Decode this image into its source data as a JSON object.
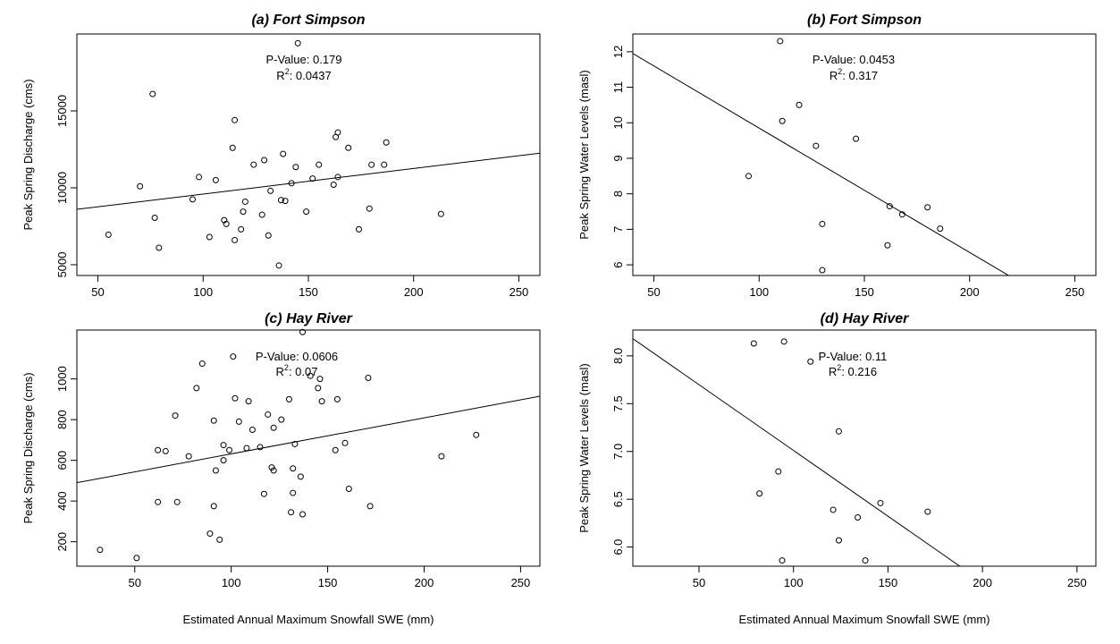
{
  "chart_data": [
    {
      "type": "scatter",
      "title": "(a) Fort Simpson",
      "xlabel": "",
      "ylabel": "Peak Spring Discharge (cms)",
      "xlim": [
        40,
        260
      ],
      "ylim": [
        4300,
        20000
      ],
      "xticks": [
        50,
        100,
        150,
        200,
        250
      ],
      "yticks": [
        5000,
        10000,
        15000
      ],
      "pvalue_text": "P-Value: 0.179",
      "r2_label": "R",
      "r2_sup": "2",
      "r2_value": ": 0.0437",
      "fit_line": {
        "x": [
          40,
          260
        ],
        "y": [
          8600,
          12250
        ]
      },
      "points": [
        [
          55,
          6950
        ],
        [
          70,
          10100
        ],
        [
          76,
          16100
        ],
        [
          77,
          8050
        ],
        [
          79,
          6100
        ],
        [
          95,
          9250
        ],
        [
          98,
          10700
        ],
        [
          103,
          6800
        ],
        [
          106,
          10500
        ],
        [
          110,
          7900
        ],
        [
          111,
          7650
        ],
        [
          114,
          12600
        ],
        [
          115,
          14400
        ],
        [
          115,
          6600
        ],
        [
          118,
          7300
        ],
        [
          119,
          8450
        ],
        [
          120,
          9100
        ],
        [
          124,
          11500
        ],
        [
          128,
          8250
        ],
        [
          129,
          11800
        ],
        [
          131,
          6900
        ],
        [
          132,
          9800
        ],
        [
          136,
          4950
        ],
        [
          137,
          9200
        ],
        [
          138,
          12200
        ],
        [
          139,
          9150
        ],
        [
          142,
          10300
        ],
        [
          144,
          11350
        ],
        [
          145,
          19400
        ],
        [
          149,
          8450
        ],
        [
          152,
          10600
        ],
        [
          155,
          11500
        ],
        [
          162,
          10200
        ],
        [
          163,
          13300
        ],
        [
          164,
          13600
        ],
        [
          164,
          10700
        ],
        [
          169,
          12600
        ],
        [
          174,
          7300
        ],
        [
          179,
          8650
        ],
        [
          180,
          11500
        ],
        [
          186,
          11500
        ],
        [
          187,
          12950
        ],
        [
          213,
          8300
        ]
      ]
    },
    {
      "type": "scatter",
      "title": "(b) Fort Simpson",
      "xlabel": "",
      "ylabel": "Peak Spring Water Levels (masl)",
      "xlim": [
        40,
        260
      ],
      "ylim": [
        5.7,
        12.5
      ],
      "xticks": [
        50,
        100,
        150,
        200,
        250
      ],
      "yticks": [
        6,
        7,
        8,
        9,
        10,
        11,
        12
      ],
      "pvalue_text": "P-Value: 0.0453",
      "r2_label": "R",
      "r2_sup": "2",
      "r2_value": ": 0.317",
      "fit_line": {
        "x": [
          40,
          220
        ],
        "y": [
          11.95,
          5.65
        ]
      },
      "points": [
        [
          95,
          8.5
        ],
        [
          110,
          12.3
        ],
        [
          111,
          10.05
        ],
        [
          119,
          10.5
        ],
        [
          127,
          9.35
        ],
        [
          130,
          7.15
        ],
        [
          130,
          5.85
        ],
        [
          146,
          9.55
        ],
        [
          161,
          6.55
        ],
        [
          162,
          7.65
        ],
        [
          168,
          7.42
        ],
        [
          180,
          7.62
        ],
        [
          186,
          7.02
        ]
      ]
    },
    {
      "type": "scatter",
      "title": "(c) Hay River",
      "xlabel": "Estimated Annual Maximum Snowfall SWE (mm)",
      "ylabel": "Peak Spring Discharge (cms)",
      "xlim": [
        20,
        260
      ],
      "ylim": [
        80,
        1240
      ],
      "xticks": [
        50,
        100,
        150,
        200,
        250
      ],
      "yticks": [
        200,
        400,
        600,
        800,
        1000
      ],
      "pvalue_text": "P-Value: 0.0606",
      "r2_label": "R",
      "r2_sup": "2",
      "r2_value": ": 0.07",
      "fit_line": {
        "x": [
          20,
          260
        ],
        "y": [
          490,
          915
        ]
      },
      "points": [
        [
          32,
          160
        ],
        [
          51,
          120
        ],
        [
          62,
          395
        ],
        [
          62,
          650
        ],
        [
          66,
          645
        ],
        [
          71,
          820
        ],
        [
          72,
          395
        ],
        [
          78,
          620
        ],
        [
          82,
          955
        ],
        [
          85,
          1075
        ],
        [
          89,
          240
        ],
        [
          91,
          375
        ],
        [
          91,
          795
        ],
        [
          92,
          550
        ],
        [
          94,
          210
        ],
        [
          96,
          600
        ],
        [
          96,
          675
        ],
        [
          99,
          650
        ],
        [
          101,
          1110
        ],
        [
          102,
          905
        ],
        [
          104,
          790
        ],
        [
          108,
          660
        ],
        [
          109,
          890
        ],
        [
          111,
          750
        ],
        [
          115,
          665
        ],
        [
          117,
          435
        ],
        [
          119,
          825
        ],
        [
          121,
          565
        ],
        [
          122,
          550
        ],
        [
          122,
          760
        ],
        [
          126,
          800
        ],
        [
          130,
          900
        ],
        [
          131,
          345
        ],
        [
          132,
          560
        ],
        [
          132,
          440
        ],
        [
          133,
          680
        ],
        [
          136,
          520
        ],
        [
          137,
          335
        ],
        [
          137,
          1230
        ],
        [
          141,
          1015
        ],
        [
          145,
          955
        ],
        [
          146,
          1000
        ],
        [
          147,
          890
        ],
        [
          154,
          650
        ],
        [
          155,
          900
        ],
        [
          159,
          685
        ],
        [
          161,
          460
        ],
        [
          171,
          1005
        ],
        [
          172,
          375
        ],
        [
          209,
          620
        ],
        [
          227,
          725
        ]
      ]
    },
    {
      "type": "scatter",
      "title": "(d) Hay River",
      "xlabel": "Estimated Annual Maximum Snowfall SWE (mm)",
      "ylabel": "Peak Spring Water Levels (masl)",
      "xlim": [
        15,
        260
      ],
      "ylim": [
        5.8,
        8.27
      ],
      "xticks": [
        50,
        100,
        150,
        200,
        250
      ],
      "yticks": [
        6.0,
        6.5,
        7.0,
        7.5,
        8.0
      ],
      "ytick_labels": [
        "6.0",
        "6.5",
        "7.0",
        "7.5",
        "8.0"
      ],
      "pvalue_text": "P-Value: 0.11",
      "r2_label": "R",
      "r2_sup": "2",
      "r2_value": ": 0.216",
      "fit_line": {
        "x": [
          15,
          188
        ],
        "y": [
          8.18,
          5.8
        ]
      },
      "points": [
        [
          79,
          8.13
        ],
        [
          82,
          6.56
        ],
        [
          92,
          6.79
        ],
        [
          94,
          5.86
        ],
        [
          95,
          8.15
        ],
        [
          109,
          7.94
        ],
        [
          121,
          6.39
        ],
        [
          124,
          7.21
        ],
        [
          124,
          6.07
        ],
        [
          134,
          6.31
        ],
        [
          138,
          5.86
        ],
        [
          146,
          6.46
        ],
        [
          171,
          6.37
        ]
      ]
    }
  ]
}
